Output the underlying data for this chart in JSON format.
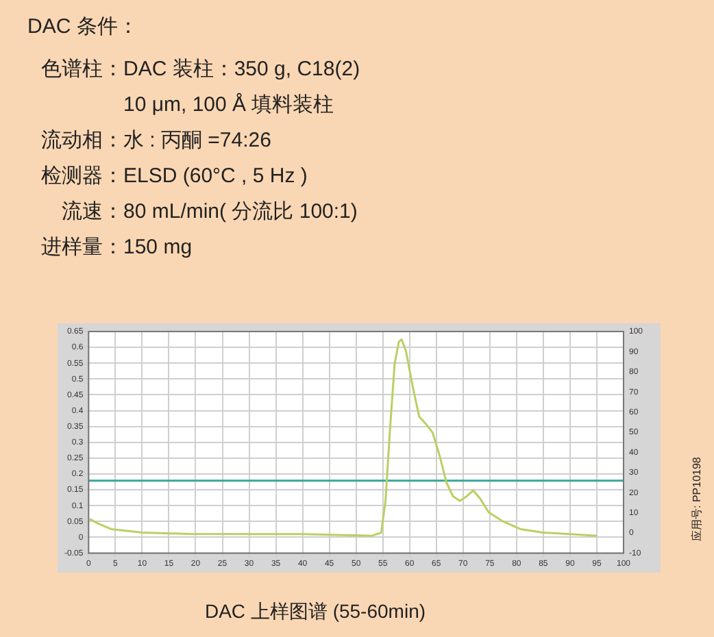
{
  "chart_data": {
    "type": "line",
    "title": "DAC 上样图谱 (55-60min)",
    "subtitle": "DAC 条件：",
    "annotations": [
      "色谱柱：DAC 装柱：350 g, C18(2)",
      "10 μm, 100 Å 填料装柱",
      "流动相：水 : 丙酮 =74:26",
      "检测器：ELSD (60°C , 5 Hz )",
      "流速：80 mL/min( 分流比 100:1)",
      "进样量：150 mg",
      "应用号: PP10198"
    ],
    "series": [
      {
        "color": "#b9d063",
        "x": [
          0.2,
          1.7,
          4.2,
          10,
          18.5,
          30,
          40,
          53,
          54.7,
          55.5,
          56.3,
          57.2,
          58,
          58.5,
          59.3,
          60.6,
          61.8,
          63.1,
          64.3,
          65.6,
          66.9,
          68.1,
          69.4,
          70.7,
          71.9,
          73.2,
          74.8,
          77.4,
          80.7,
          84.9,
          90,
          95
        ],
        "values": [
          0.058,
          0.044,
          0.026,
          0.015,
          0.011,
          0.01,
          0.01,
          0.005,
          0.015,
          0.115,
          0.33,
          0.547,
          0.618,
          0.625,
          0.59,
          0.475,
          0.381,
          0.357,
          0.331,
          0.259,
          0.173,
          0.13,
          0.115,
          0.13,
          0.148,
          0.122,
          0.079,
          0.051,
          0.026,
          0.015,
          0.01,
          0.005
        ]
      },
      {
        "color": "#3aa69a",
        "axis": "y2",
        "x": [
          0,
          100
        ],
        "values": [
          26,
          26
        ]
      }
    ],
    "xlim": [
      0,
      100
    ],
    "xticks": [
      0,
      5,
      10,
      15,
      20,
      25,
      30,
      35,
      40,
      45,
      50,
      55,
      60,
      65,
      70,
      75,
      80,
      85,
      90,
      95,
      100
    ],
    "ylim": [
      -0.05,
      0.65
    ],
    "yticks": [
      -0.05,
      0,
      0.05,
      0.1,
      0.15,
      0.2,
      0.25,
      0.3,
      0.35,
      0.4,
      0.45,
      0.5,
      0.55,
      0.6,
      0.65
    ],
    "y2lim": [
      -10,
      100
    ],
    "y2ticks": [
      -10,
      0,
      10,
      20,
      30,
      40,
      50,
      60,
      70,
      80,
      90,
      100
    ],
    "grid": true,
    "legend": false,
    "marker": "none",
    "line_style": "solid"
  }
}
